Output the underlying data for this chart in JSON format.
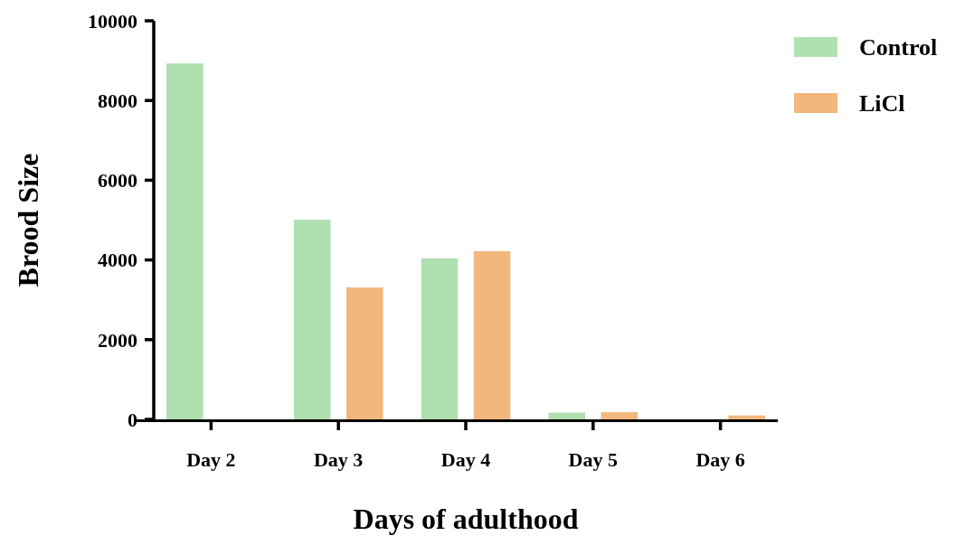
{
  "chart_data": {
    "type": "bar",
    "xlabel": "Days of adulthood",
    "ylabel": "Brood Size",
    "categories": [
      "Day 2",
      "Day 3",
      "Day 4",
      "Day 5",
      "Day 6"
    ],
    "series": [
      {
        "name": "Control",
        "color": "#afe0b0",
        "values": [
          8930,
          5010,
          4040,
          170,
          0
        ]
      },
      {
        "name": "LiCl",
        "color": "#f1b77d",
        "values": [
          0,
          3310,
          4220,
          180,
          100
        ]
      }
    ],
    "ylim": [
      0,
      10000
    ],
    "yticks": [
      0,
      2000,
      4000,
      6000,
      8000,
      10000
    ],
    "grid": false,
    "legend": "top right"
  }
}
